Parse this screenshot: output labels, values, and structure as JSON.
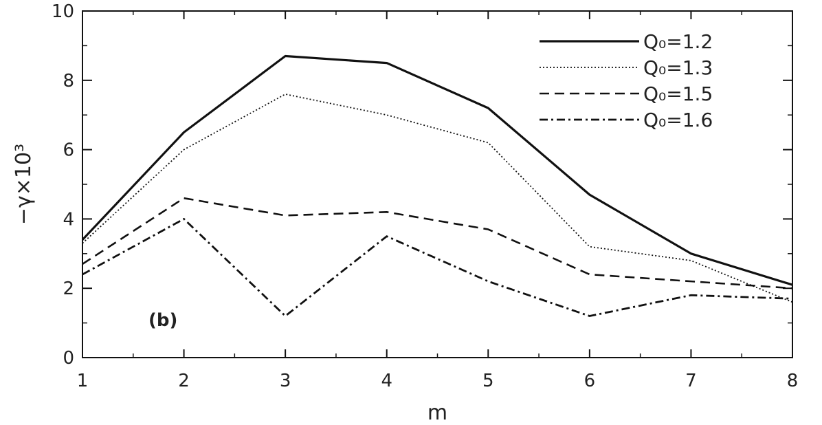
{
  "chart_data": {
    "type": "line",
    "panel_label": "(b)",
    "xlabel": "m",
    "ylabel": "−γ×10³",
    "xlim": [
      1,
      8
    ],
    "ylim": [
      0,
      10
    ],
    "xticks": [
      {
        "value": 1,
        "label": "1"
      },
      {
        "value": 2,
        "label": "2"
      },
      {
        "value": 3,
        "label": "3"
      },
      {
        "value": 4,
        "label": "4"
      },
      {
        "value": 5,
        "label": "5"
      },
      {
        "value": 6,
        "label": "6"
      },
      {
        "value": 7,
        "label": "7"
      },
      {
        "value": 8,
        "label": "8"
      }
    ],
    "yticks": [
      {
        "value": 0,
        "label": "0"
      },
      {
        "value": 2,
        "label": "2"
      },
      {
        "value": 4,
        "label": "4"
      },
      {
        "value": 6,
        "label": "6"
      },
      {
        "value": 8,
        "label": "8"
      },
      {
        "value": 10,
        "label": "10"
      }
    ],
    "yminor": [
      1,
      3,
      5,
      7,
      9
    ],
    "grid": false,
    "legend_position": "top-right",
    "x": [
      1,
      2,
      3,
      4,
      5,
      6,
      7,
      8
    ],
    "series": [
      {
        "name": "Q₀=1.2",
        "style": "solid",
        "values": [
          3.4,
          6.5,
          8.7,
          8.5,
          7.2,
          4.7,
          3.0,
          2.1
        ]
      },
      {
        "name": "Q₀=1.3",
        "style": "dotted",
        "values": [
          3.3,
          6.0,
          7.6,
          7.0,
          6.2,
          3.2,
          2.8,
          1.6
        ]
      },
      {
        "name": "Q₀=1.5",
        "style": "dashed",
        "values": [
          2.7,
          4.6,
          4.1,
          4.2,
          3.7,
          2.4,
          2.2,
          2.0
        ]
      },
      {
        "name": "Q₀=1.6",
        "style": "dashdot",
        "values": [
          2.4,
          4.0,
          1.2,
          3.5,
          2.2,
          1.2,
          1.8,
          1.7
        ]
      }
    ]
  }
}
